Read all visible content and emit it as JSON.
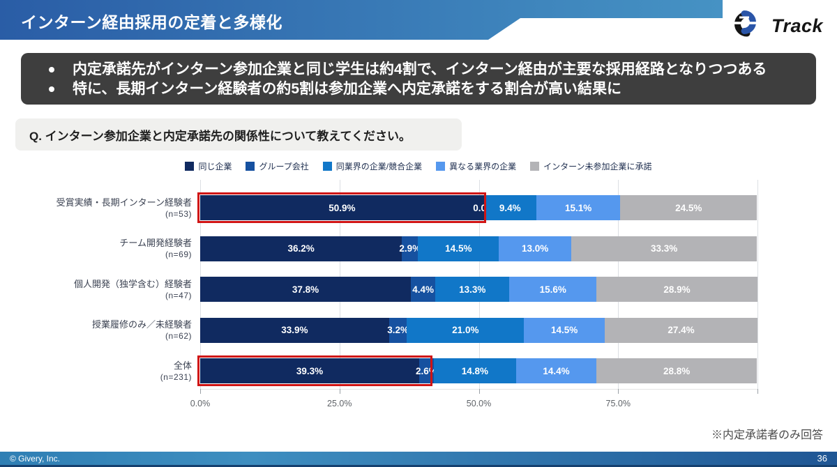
{
  "header": {
    "title": "インターン経由採用の定着と多様化",
    "logo_text": "Track"
  },
  "summary": {
    "bullets": [
      "内定承諾先がインターン参加企業と同じ学生は約4割で、インターン経由が主要な採用経路となりつつある",
      "特に、長期インターン経験者の約5割は参加企業へ内定承諾をする割合が高い結果に"
    ]
  },
  "question": {
    "label": "Q. インターン参加企業と内定承諾先の関係性について教えてください。"
  },
  "chart_data": {
    "type": "bar",
    "stacked": true,
    "orientation": "horizontal",
    "xlim": [
      0,
      100
    ],
    "grid": true,
    "legend_position": "top-center",
    "categories": [
      "受賞実績・長期インターン経験者",
      "チーム開発経験者",
      "個人開発（独学含む）経験者",
      "授業履修のみ／未経験者",
      "全体"
    ],
    "category_sublabels": [
      "(n=53)",
      "(n=69)",
      "(n=47)",
      "(n=62)",
      "(n=231)"
    ],
    "series": [
      {
        "name": "同じ企業",
        "color": "#102a60",
        "values": [
          50.9,
          36.2,
          37.8,
          33.9,
          39.3
        ]
      },
      {
        "name": "グループ会社",
        "color": "#1651a0",
        "values": [
          0.0,
          2.9,
          4.4,
          3.2,
          2.6
        ]
      },
      {
        "name": "同業界の企業/競合企業",
        "color": "#1177c8",
        "values": [
          9.4,
          14.5,
          13.3,
          21.0,
          14.8
        ]
      },
      {
        "name": "異なる業界の企業",
        "color": "#5598ee",
        "values": [
          15.1,
          13.0,
          15.6,
          14.5,
          14.4
        ]
      },
      {
        "name": "インターン未参加企業に承諾",
        "color": "#b3b3b6",
        "values": [
          24.5,
          33.3,
          28.9,
          27.4,
          28.8
        ]
      }
    ],
    "x_ticks": [
      {
        "label": "0.0%",
        "pos": 0
      },
      {
        "label": "25.0%",
        "pos": 25
      },
      {
        "label": "50.0%",
        "pos": 50
      },
      {
        "label": "75.0%",
        "pos": 75
      }
    ],
    "gridline_positions": [
      0,
      25,
      50,
      75,
      100
    ],
    "highlights": [
      {
        "row": 0,
        "from_pct": 0,
        "to_pct": 51.3,
        "color": "#d01414"
      },
      {
        "row": 4,
        "from_pct": 0,
        "to_pct": 41.7,
        "color": "#d01414"
      }
    ]
  },
  "footnote": "※内定承諾者のみ回答",
  "footer": {
    "copyright": "© Givery, Inc.",
    "page_number": "36"
  }
}
